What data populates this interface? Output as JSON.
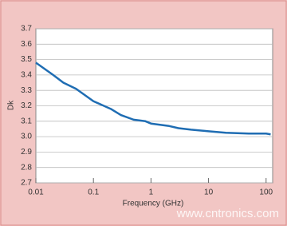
{
  "chart_data": {
    "type": "line",
    "title": null,
    "x_label": "Frequency (GHz)",
    "y_label": "Dk",
    "x": [
      0.01,
      0.02,
      0.03,
      0.05,
      0.1,
      0.2,
      0.3,
      0.5,
      0.8,
      1,
      2,
      3,
      5,
      10,
      20,
      50,
      100,
      120
    ],
    "series": [
      {
        "name": "Dk",
        "color": "#1f6db3",
        "values": [
          3.48,
          3.4,
          3.35,
          3.31,
          3.23,
          3.18,
          3.14,
          3.11,
          3.1,
          3.085,
          3.07,
          3.055,
          3.045,
          3.035,
          3.025,
          3.02,
          3.02,
          3.015
        ]
      }
    ],
    "xscale": "log",
    "xlim": [
      0.01,
      130
    ],
    "xticks": [
      0.01,
      0.1,
      1,
      10,
      100
    ],
    "ylim": [
      2.7,
      3.7
    ],
    "yticks": [
      {
        "value": 2.7,
        "label": "2.7"
      },
      {
        "value": 2.8,
        "label": "2.8"
      },
      {
        "value": 2.9,
        "label": "2.9"
      },
      {
        "value": 3,
        "label": "3.0"
      },
      {
        "value": 3.1,
        "label": "3.1"
      },
      {
        "value": 3.2,
        "label": "3.2"
      },
      {
        "value": 3.3,
        "label": "3.3"
      },
      {
        "value": 3.4,
        "label": "3.4"
      },
      {
        "value": 3.5,
        "label": "3.5"
      },
      {
        "value": 3.6,
        "label": "3.6"
      },
      {
        "value": 3.7,
        "label": "3.7"
      }
    ],
    "grid": true
  },
  "watermark": "www.cntronics.com"
}
